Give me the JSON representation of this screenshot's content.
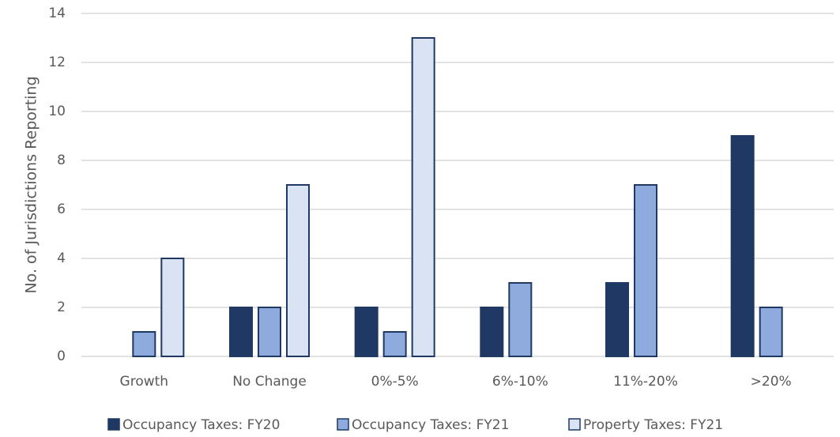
{
  "chart_data": {
    "type": "bar",
    "y_label": "No. of Jurisdictions Reporting",
    "categories": [
      "Growth",
      "No Change",
      "0%-5%",
      "6%-10%",
      "11%-20%",
      ">20%"
    ],
    "series": [
      {
        "name": "Occupancy Taxes: FY20",
        "color": "#1f3864",
        "values": [
          0,
          2,
          2,
          2,
          3,
          9
        ]
      },
      {
        "name": "Occupancy Taxes: FY21",
        "color": "#8faadc",
        "values": [
          1,
          2,
          1,
          3,
          7,
          2
        ]
      },
      {
        "name": "Property Taxes: FY21",
        "color": "#dae3f3",
        "values": [
          4,
          7,
          13,
          0,
          0,
          0
        ]
      }
    ],
    "ylim": [
      0,
      14
    ],
    "yticks": [
      0,
      2,
      4,
      6,
      8,
      10,
      12,
      14
    ],
    "grid": true,
    "legend": "bottom"
  }
}
